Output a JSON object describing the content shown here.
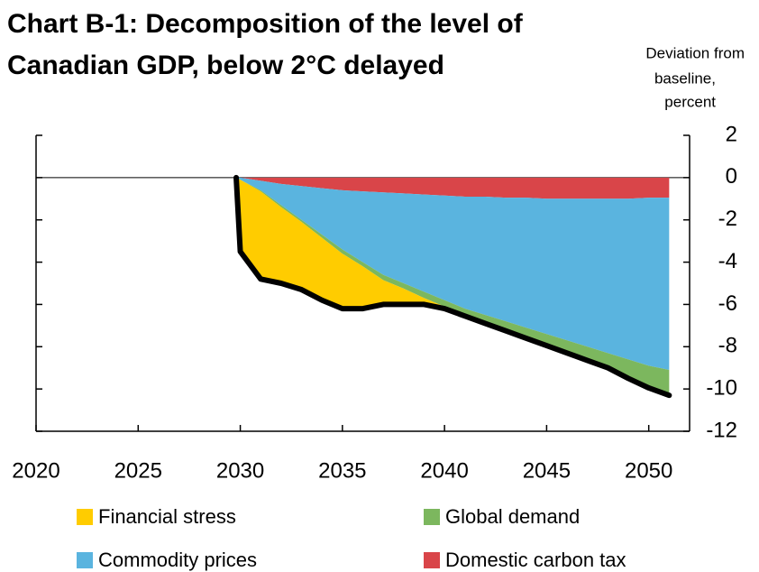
{
  "chart_data": {
    "type": "stacked_area",
    "title": [
      "Chart B-1: Decomposition of the level of",
      "Canadian GDP, below 2°C delayed"
    ],
    "y_axis_label": [
      "Deviation from",
      "baseline,",
      "percent"
    ],
    "x": [
      2029.8,
      2030,
      2031,
      2032,
      2033,
      2034,
      2035,
      2036,
      2037,
      2038,
      2039,
      2040,
      2041,
      2042,
      2043,
      2044,
      2045,
      2046,
      2047,
      2048,
      2049,
      2050,
      2051
    ],
    "series": [
      {
        "name": "Financial stress",
        "color": "#ffcc00",
        "values": [
          0,
          -3.4,
          -4.15,
          -3.6,
          -3.2,
          -2.95,
          -2.6,
          -2.0,
          -1.15,
          -0.75,
          -0.3,
          -0.1,
          0,
          0,
          0,
          0,
          0,
          0,
          0,
          0,
          0,
          0,
          0
        ]
      },
      {
        "name": "Global demand",
        "color": "#7cb75e",
        "values": [
          0,
          0,
          -0.05,
          -0.1,
          -0.1,
          -0.15,
          -0.2,
          -0.2,
          -0.25,
          -0.25,
          -0.3,
          -0.3,
          -0.35,
          -0.4,
          -0.45,
          -0.5,
          -0.55,
          -0.6,
          -0.65,
          -0.7,
          -0.9,
          -1.05,
          -1.2
        ]
      },
      {
        "name": "Commodity prices",
        "color": "#5ab4df",
        "values": [
          0,
          -0.1,
          -0.45,
          -1.0,
          -1.6,
          -2.2,
          -2.8,
          -3.35,
          -3.9,
          -4.25,
          -4.6,
          -4.95,
          -5.3,
          -5.6,
          -5.85,
          -6.15,
          -6.4,
          -6.7,
          -7.0,
          -7.3,
          -7.6,
          -7.95,
          -8.15
        ]
      },
      {
        "name": "Domestic carbon tax",
        "color": "#d94549",
        "values": [
          0,
          0,
          -0.15,
          -0.3,
          -0.4,
          -0.5,
          -0.6,
          -0.65,
          -0.7,
          -0.75,
          -0.8,
          -0.85,
          -0.9,
          -0.9,
          -0.95,
          -0.95,
          -1.0,
          -1.0,
          -1.0,
          -1.0,
          -1.0,
          -0.95,
          -0.95
        ]
      }
    ],
    "total_line": {
      "color": "#000000",
      "values": [
        0,
        -3.5,
        -4.8,
        -5.0,
        -5.3,
        -5.8,
        -6.2,
        -6.2,
        -6.0,
        -6.0,
        -6.0,
        -6.2,
        -6.55,
        -6.9,
        -7.25,
        -7.6,
        -7.95,
        -8.3,
        -8.65,
        -9.0,
        -9.5,
        -9.95,
        -10.3
      ]
    },
    "xlim": [
      2020,
      2052
    ],
    "xticks": [
      2020,
      2025,
      2030,
      2035,
      2040,
      2045,
      2050
    ],
    "ylim": [
      -12,
      2
    ],
    "yticks": [
      2,
      0,
      -2,
      -4,
      -6,
      -8,
      -10,
      -12
    ]
  }
}
